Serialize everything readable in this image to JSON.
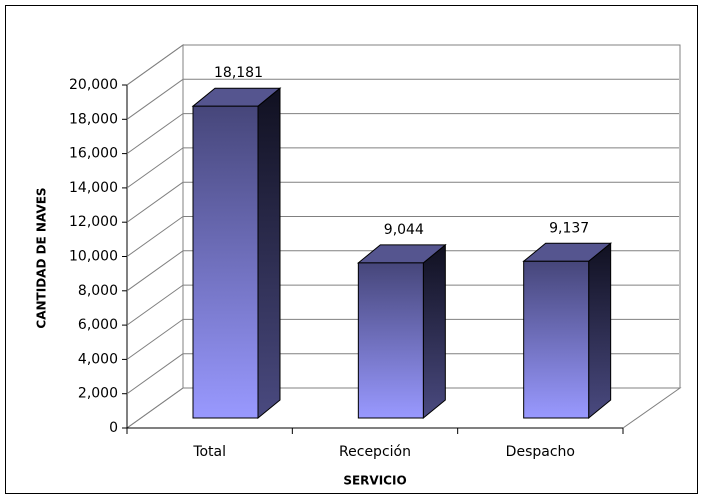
{
  "chart_data": {
    "type": "bar",
    "x_label": "SERVICIO",
    "y_label": "CANTIDAD DE NAVES",
    "categories": [
      "Total",
      "Recepción",
      "Despacho"
    ],
    "values": [
      18181,
      9044,
      9137
    ],
    "value_labels": [
      "18,181",
      "9,044",
      "9,137"
    ],
    "color": "#9999ff",
    "ylim": [
      0,
      20000
    ],
    "yticks": [
      0,
      {
        "value": 2000,
        "label": "2,000"
      },
      {
        "value": 4000,
        "label": "4,000"
      },
      {
        "value": 6000,
        "label": "6,000"
      },
      {
        "value": 8000,
        "label": "8,000"
      },
      {
        "value": 10000,
        "label": "10,000"
      },
      {
        "value": 12000,
        "label": "12,000"
      },
      {
        "value": 14000,
        "label": "14,000"
      },
      {
        "value": 16000,
        "label": "16,000"
      },
      {
        "value": 18000,
        "label": "18,000"
      },
      {
        "value": 20000,
        "label": "20,000"
      }
    ],
    "grid": true
  }
}
